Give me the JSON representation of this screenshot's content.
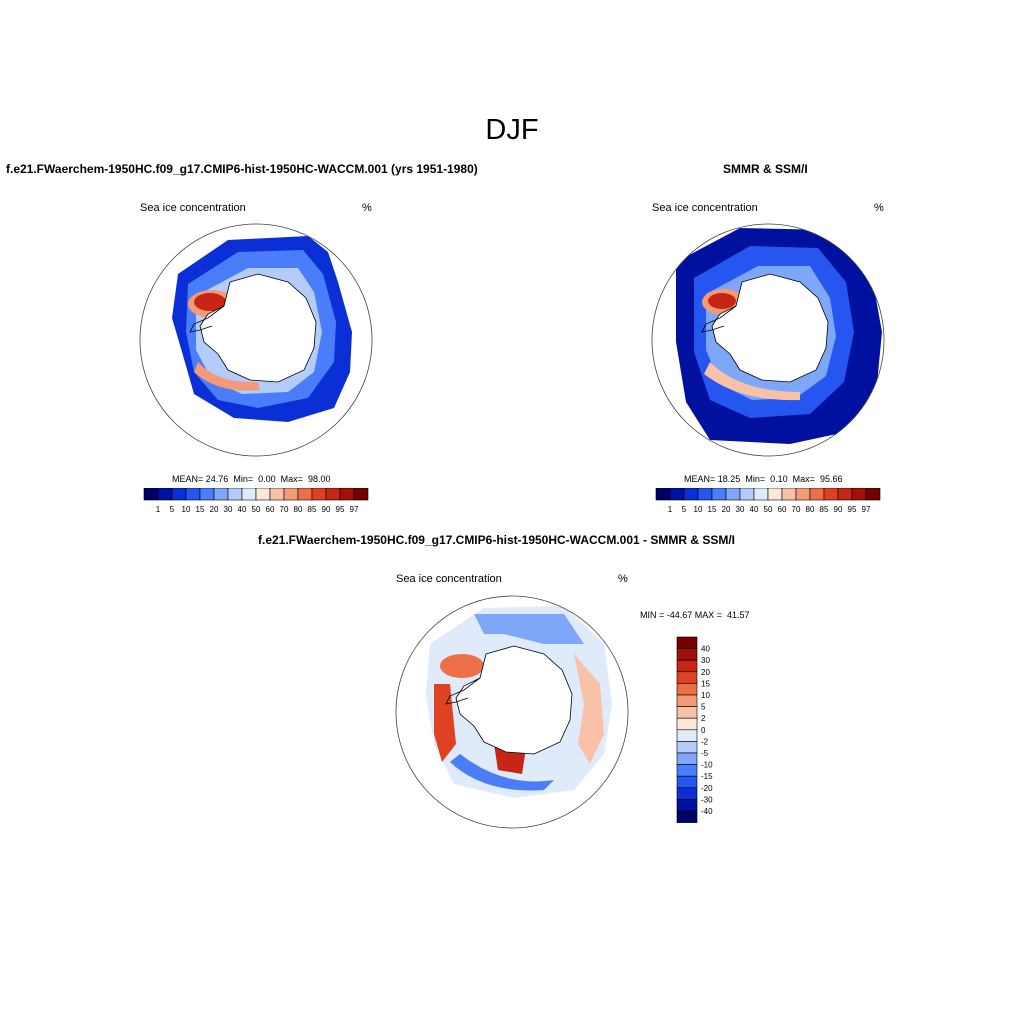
{
  "page": {
    "title": "DJF"
  },
  "colors": {
    "seq_scale": [
      "#000066",
      "#00119f",
      "#0a2fd6",
      "#2556f0",
      "#4a7dfa",
      "#7ea6f9",
      "#b3ccfa",
      "#dfeafb",
      "#fde6da",
      "#f9c2a8",
      "#f59a77",
      "#ec6f47",
      "#dd4323",
      "#c72614",
      "#a30f09",
      "#750000"
    ],
    "diff_scale": [
      "#000066",
      "#00119f",
      "#0a2fd6",
      "#2556f0",
      "#4a7dfa",
      "#7ea6f9",
      "#b3ccfa",
      "#dfeafb",
      "#fde6da",
      "#f9c2a8",
      "#f59a77",
      "#ec6f47",
      "#dd4323",
      "#c72614",
      "#a30f09",
      "#750000"
    ]
  },
  "panel_model": {
    "title": "f.e21.FWaerchem-1950HC.f09_g17.CMIP6-hist-1950HC-WACCM.001 (yrs 1951-1980)",
    "field_label": "Sea ice concentration",
    "units": "%",
    "stats": {
      "mean_label": "MEAN=",
      "mean": "24.76",
      "min_label": "Min=",
      "min": "0.00",
      "max_label": "Max=",
      "max": "98.00"
    }
  },
  "panel_obs": {
    "title": "SMMR & SSM/I",
    "field_label": "Sea ice concentration",
    "units": "%",
    "stats": {
      "mean_label": "MEAN=",
      "mean": "18.25",
      "min_label": "Min=",
      "min": "0.10",
      "max_label": "Max=",
      "max": "95.66"
    }
  },
  "panel_diff": {
    "title": "f.e21.FWaerchem-1950HC.f09_g17.CMIP6-hist-1950HC-WACCM.001 - SMMR & SSM/I",
    "field_label": "Sea ice concentration",
    "units": "%",
    "minmax": "MIN = -44.67 MAX =  41.57"
  },
  "colorbar_levels": [
    "1",
    "5",
    "10",
    "15",
    "20",
    "30",
    "40",
    "50",
    "60",
    "70",
    "80",
    "85",
    "90",
    "95",
    "97"
  ],
  "diff_levels": [
    "40",
    "30",
    "20",
    "15",
    "10",
    "5",
    "2",
    "0",
    "-2",
    "-5",
    "-10",
    "-15",
    "-20",
    "-30",
    "-40"
  ]
}
